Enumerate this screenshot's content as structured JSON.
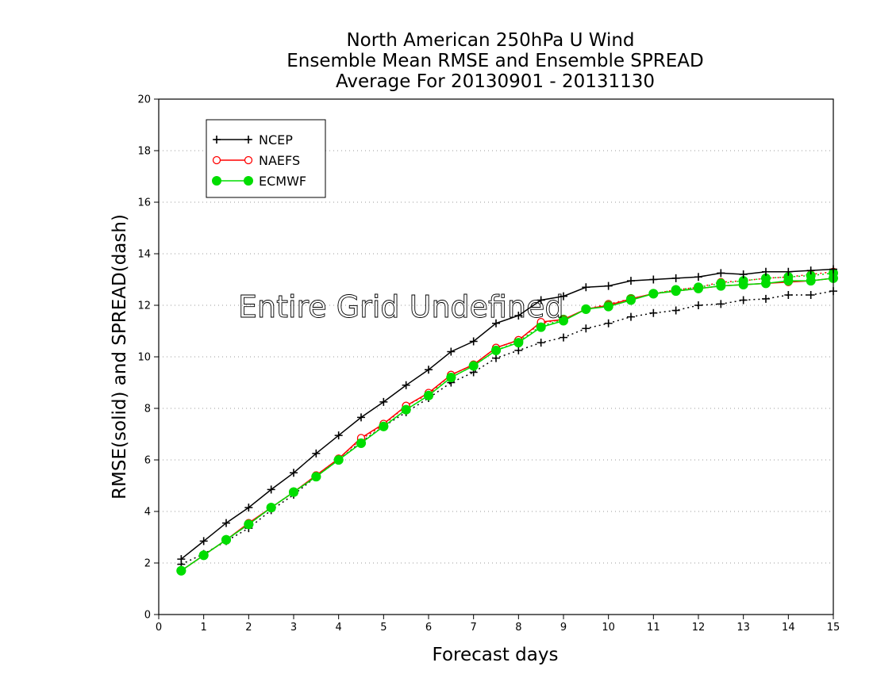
{
  "chart_data": {
    "type": "line",
    "title": [
      "North American 250hPa U Wind",
      "Ensemble Mean RMSE and Ensemble SPREAD",
      "Average For 20130901 - 20131130"
    ],
    "xlabel": "Forecast days",
    "ylabel": "RMSE(solid) and SPREAD(dash)",
    "xlim": [
      0,
      15
    ],
    "ylim": [
      0,
      20
    ],
    "x_ticks": [
      "0",
      "1",
      "2",
      "3",
      "4",
      "5",
      "6",
      "7",
      "8",
      "9",
      "10",
      "11",
      "12",
      "13",
      "14",
      "15"
    ],
    "y_ticks": [
      "0",
      "2",
      "4",
      "6",
      "8",
      "10",
      "12",
      "14",
      "16",
      "18",
      "20"
    ],
    "grid": "horizontal dotted",
    "legend_position": "top-left",
    "annotation": "Entire Grid Undefined",
    "colors": {
      "NCEP": "#000000",
      "NAEFS": "#ff0000",
      "ECMWF": "#00dd00"
    },
    "x": [
      0.5,
      1,
      1.5,
      2,
      2.5,
      3,
      3.5,
      4,
      4.5,
      5,
      5.5,
      6,
      6.5,
      7,
      7.5,
      8,
      8.5,
      9,
      9.5,
      10,
      10.5,
      11,
      11.5,
      12,
      12.5,
      13,
      13.5,
      14,
      14.5,
      15
    ],
    "series": [
      {
        "name": "NCEP",
        "kind": "rmse",
        "style": "solid",
        "marker": "plus",
        "values": [
          2.15,
          2.85,
          3.55,
          4.15,
          4.85,
          5.5,
          6.25,
          6.95,
          7.65,
          8.25,
          8.9,
          9.5,
          10.2,
          10.6,
          11.3,
          11.6,
          12.2,
          12.35,
          12.7,
          12.75,
          12.95,
          13.0,
          13.05,
          13.1,
          13.25,
          13.2,
          13.3,
          13.3,
          13.35,
          13.4
        ]
      },
      {
        "name": "NAEFS",
        "kind": "rmse",
        "style": "solid",
        "marker": "open-circle",
        "values": [
          1.7,
          2.3,
          2.9,
          3.55,
          4.15,
          4.75,
          5.4,
          6.05,
          6.85,
          7.4,
          8.1,
          8.6,
          9.3,
          9.7,
          10.35,
          10.65,
          11.35,
          11.45,
          11.85,
          12.0,
          12.25,
          12.45,
          12.55,
          12.65,
          12.75,
          12.8,
          12.85,
          12.9,
          12.95,
          13.05
        ]
      },
      {
        "name": "ECMWF",
        "kind": "rmse",
        "style": "solid",
        "marker": "filled-circle",
        "values": [
          1.7,
          2.3,
          2.9,
          3.5,
          4.15,
          4.75,
          5.35,
          6.0,
          6.65,
          7.3,
          7.95,
          8.5,
          9.2,
          9.65,
          10.25,
          10.55,
          11.15,
          11.4,
          11.85,
          11.95,
          12.2,
          12.45,
          12.55,
          12.65,
          12.75,
          12.8,
          12.85,
          12.95,
          12.95,
          13.05
        ]
      },
      {
        "name": "NCEP",
        "kind": "spread",
        "style": "dotted",
        "marker": "plus",
        "values": [
          1.95,
          2.35,
          2.85,
          3.35,
          4.05,
          4.65,
          5.35,
          6.0,
          6.7,
          7.3,
          7.85,
          8.4,
          9.0,
          9.4,
          9.95,
          10.25,
          10.55,
          10.75,
          11.1,
          11.3,
          11.55,
          11.7,
          11.8,
          12.0,
          12.05,
          12.2,
          12.25,
          12.4,
          12.4,
          12.55
        ]
      },
      {
        "name": "NAEFS",
        "kind": "spread",
        "style": "dotted",
        "marker": "open-circle",
        "values": [
          1.7,
          2.3,
          2.9,
          3.5,
          4.15,
          4.75,
          5.4,
          6.05,
          6.8,
          7.35,
          8.1,
          8.55,
          9.3,
          9.7,
          10.35,
          10.65,
          11.3,
          11.45,
          11.85,
          12.05,
          12.25,
          12.45,
          12.6,
          12.7,
          12.9,
          12.95,
          13.05,
          13.1,
          13.2,
          13.3
        ]
      },
      {
        "name": "ECMWF",
        "kind": "spread",
        "style": "dotted",
        "marker": "filled-circle",
        "values": [
          1.7,
          2.3,
          2.9,
          3.5,
          4.15,
          4.75,
          5.35,
          6.0,
          6.65,
          7.3,
          7.95,
          8.5,
          9.2,
          9.65,
          10.25,
          10.6,
          11.2,
          11.45,
          11.85,
          12.0,
          12.25,
          12.45,
          12.6,
          12.7,
          12.85,
          12.95,
          13.05,
          13.1,
          13.15,
          13.25
        ]
      }
    ]
  }
}
